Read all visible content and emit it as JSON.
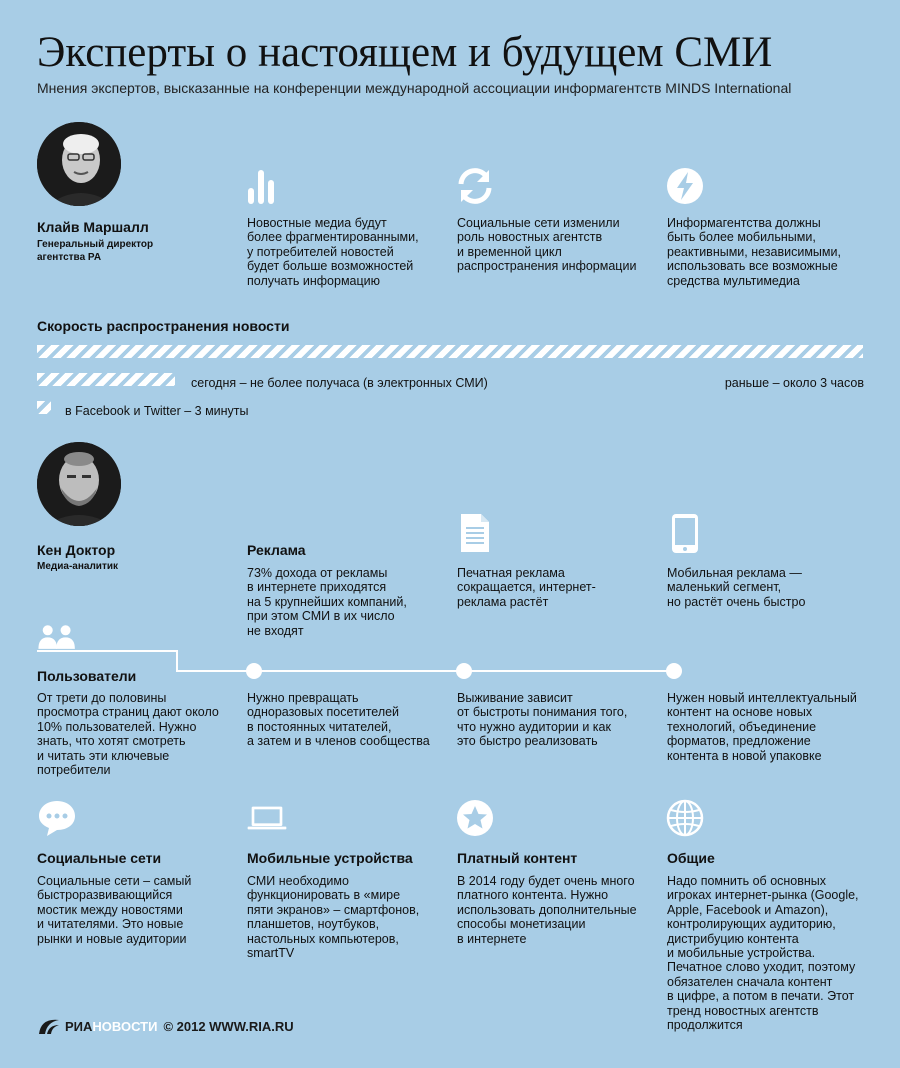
{
  "header": {
    "title": "Эксперты о настоящем и будущем СМИ",
    "subtitle": "Мнения экспертов, высказанные на конференции международной ассоциации информагентств MINDS International"
  },
  "expert1": {
    "name": "Клайв Маршалл",
    "role": "Генеральный директор\nагентства PA",
    "points": [
      {
        "icon": "bar-chart-icon",
        "text": "Новостные медиа будут\nболее фрагментированными,\nу потребителей новостей\nбудет больше возможностей\nполучать информацию"
      },
      {
        "icon": "refresh-icon",
        "text": "Социальные сети изменили\nроль новостных агентств\nи временной цикл\nраспространения информации"
      },
      {
        "icon": "lightning-icon",
        "text": "Информагентства должны\nбыть более мобильными,\nреактивными, независимыми,\nиспользовать все возможные\nсредства мультимедиа"
      }
    ]
  },
  "speed": {
    "title": "Скорость распространения новости",
    "items": [
      {
        "label": "раньше – около 3 часов",
        "minutes": 180
      },
      {
        "label": "сегодня – не более получаса (в электронных СМИ)",
        "minutes": 30
      },
      {
        "label": "в Facebook и Twitter – 3 минуты",
        "minutes": 3
      }
    ]
  },
  "expert2": {
    "name": "Кен Доктор",
    "role": "Медиа-аналитик",
    "ads": {
      "title": "Реклама",
      "text": "73% дохода от рекламы\nв интернете приходятся\nна 5 крупнейших компаний,\nпри этом СМИ в их число\nне входят",
      "items": [
        {
          "icon": "document-icon",
          "text": "Печатная реклама\nсокращается, интернет-\nреклама растёт"
        },
        {
          "icon": "smartphone-icon",
          "text": "Мобильная реклама —\nмаленький сегмент,\nно растёт очень быстро"
        }
      ]
    },
    "users": {
      "title": "Пользователи",
      "text": "От трети до половины\nпросмотра страниц дают около\n10% пользователей. Нужно\nзнать, что хотят смотреть\nи читать эти ключевые\nпотребители",
      "steps": [
        "Нужно превращать\nодноразовых посетителей\nв постоянных читателей,\nа затем и в членов сообщества",
        "Выживание зависит\nот быстроты понимания того,\nчто нужно аудитории и как\nэто быстро реализовать",
        "Нужен новый интеллектуальный\nконтент на основе новых\nтехнологий, объединение\nформатов, предложение\nконтента в новой упаковке"
      ]
    },
    "topics": [
      {
        "icon": "speech-bubble-icon",
        "title": "Социальные сети",
        "text": "Социальные сети – самый\nбыстроразвивающийся\nмостик между новостями\nи читателями. Это новые\nрынки и новые аудитории"
      },
      {
        "icon": "laptop-icon",
        "title": "Мобильные устройства",
        "text": "СМИ необходимо\nфункционировать в «мире\nпяти экранов» – смартфонов,\nпланшетов, ноутбуков,\nнастольных компьютеров,\nsmartTV"
      },
      {
        "icon": "star-badge-icon",
        "title": "Платный контент",
        "text": "В 2014 году будет очень много\nплатного контента. Нужно\nиспользовать дополнительные\nспособы монетизации\nв интернете"
      },
      {
        "icon": "globe-icon",
        "title": "Общие",
        "text": "Надо помнить об основных\nигроках интернет-рынка (Google,\nApple, Facebook и Amazon),\nконтролирующих аудиторию,\nдистрибуцию контента\nи мобильные устройства.\nПечатное слово уходит, поэтому\nобязателен сначала контент\nв цифре, а потом в печати. Этот\nтренд новостных агентств\nпродолжится"
      }
    ]
  },
  "footer": {
    "brand_ria": "РИА",
    "brand_novosti": "НОВОСТИ",
    "credit": "© 2012 WWW.RIA.RU"
  },
  "colors": {
    "background": "#a8cde6",
    "text": "#111111",
    "icon": "#ffffff",
    "footer_accent": "#ffffff"
  }
}
